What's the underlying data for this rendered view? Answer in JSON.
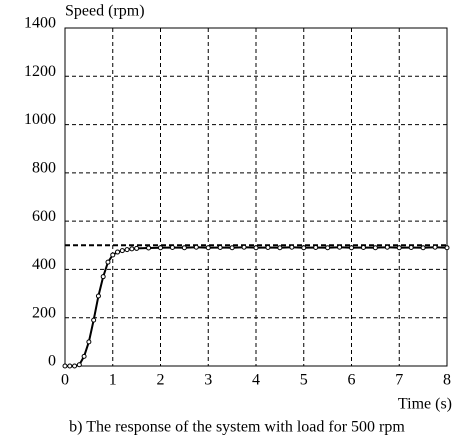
{
  "chart_data": {
    "type": "scatter",
    "caption": "b) The response of the system with load for 500 rpm",
    "y_label": "Speed (rpm)",
    "x_label": "Time (s)",
    "x": [
      0,
      0.1,
      0.2,
      0.3,
      0.4,
      0.5,
      0.6,
      0.7,
      0.8,
      0.9,
      1.0,
      1.1,
      1.2,
      1.3,
      1.4,
      1.5,
      1.75,
      2.0,
      2.25,
      2.5,
      2.75,
      3.0,
      3.25,
      3.5,
      3.75,
      4.0,
      4.25,
      4.5,
      4.75,
      5.0,
      5.25,
      5.5,
      5.75,
      6.0,
      6.25,
      6.5,
      6.75,
      7.0,
      7.25,
      7.5,
      7.75,
      8.0
    ],
    "series": [
      {
        "color": "#000000",
        "values": [
          0,
          0,
          0,
          5,
          40,
          100,
          190,
          290,
          370,
          430,
          460,
          472,
          478,
          482,
          485,
          487,
          489,
          490,
          491,
          490,
          492,
          490,
          491,
          490,
          492,
          490,
          491,
          490,
          492,
          490,
          491,
          490,
          492,
          490,
          491,
          490,
          492,
          490,
          491,
          490,
          492,
          490
        ]
      }
    ],
    "reference_line": 500,
    "xlim": [
      0,
      8
    ],
    "xticks": [
      0,
      1,
      2,
      3,
      4,
      5,
      6,
      7,
      8
    ],
    "ylim": [
      0,
      1400
    ],
    "yticks": [
      0,
      200,
      400,
      600,
      800,
      1000,
      1200,
      1400
    ],
    "grid": true
  }
}
